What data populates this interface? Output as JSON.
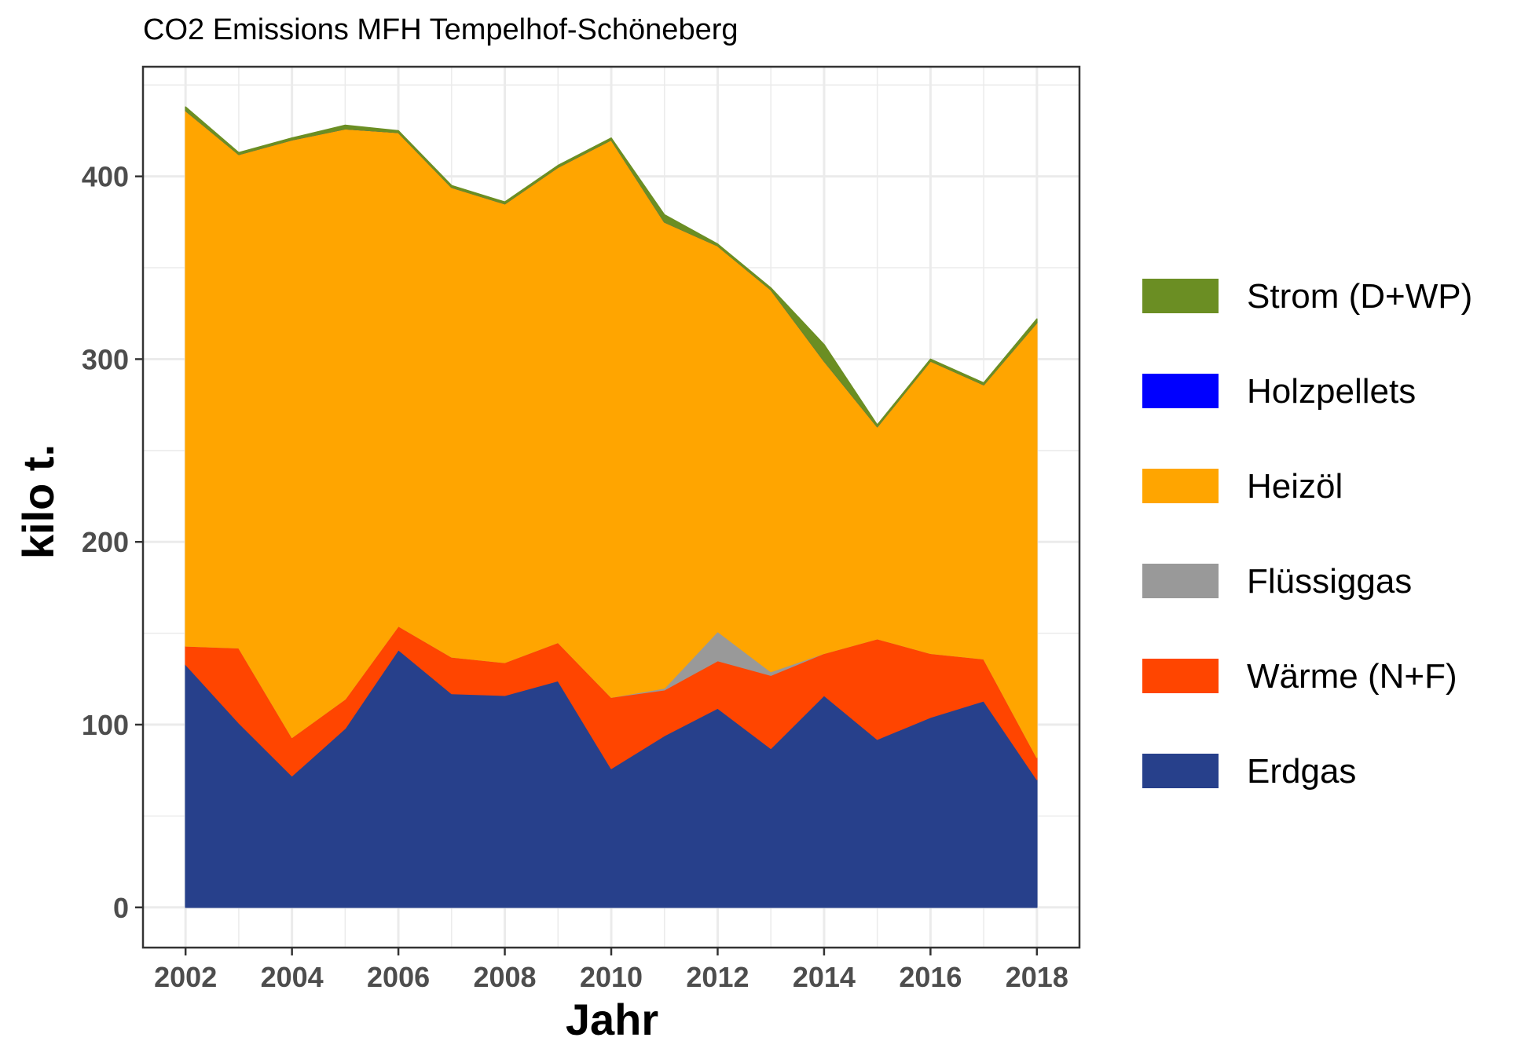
{
  "chart_data": {
    "type": "area",
    "title": "CO2 Emissions MFH Tempelhof-Schöneberg",
    "xlabel": "Jahr",
    "ylabel": "kilo t.",
    "x": [
      2002,
      2003,
      2004,
      2005,
      2006,
      2007,
      2008,
      2009,
      2010,
      2011,
      2012,
      2013,
      2014,
      2015,
      2016,
      2017,
      2018
    ],
    "xlim": [
      2001.2,
      2018.8
    ],
    "ylim": [
      -22,
      460
    ],
    "x_ticks": [
      "2002",
      "2004",
      "2006",
      "2008",
      "2010",
      "2012",
      "2014",
      "2016",
      "2018"
    ],
    "y_ticks": [
      "0",
      "100",
      "200",
      "300",
      "400"
    ],
    "grid": true,
    "legend_position": "right",
    "stacked": true,
    "series": [
      {
        "name": "Erdgas",
        "color": "#27408B",
        "values": [
          133,
          101,
          72,
          98,
          141,
          117,
          116,
          124,
          76,
          94,
          109,
          87,
          116,
          92,
          104,
          113,
          70
        ]
      },
      {
        "name": "Wärme (N+F)",
        "color": "#FF4500",
        "values": [
          10,
          41,
          21,
          16,
          13,
          20,
          18,
          21,
          39,
          25,
          26,
          40,
          23,
          55,
          35,
          23,
          12
        ]
      },
      {
        "name": "Flüssiggas",
        "color": "#999999",
        "values": [
          0,
          0,
          0,
          0,
          0,
          0,
          0,
          0,
          0,
          1,
          16,
          2,
          0,
          0,
          0,
          0,
          0
        ]
      },
      {
        "name": "Heizöl",
        "color": "#FFA500",
        "values": [
          293,
          270,
          327,
          312,
          270,
          257,
          251,
          260,
          305,
          255,
          211,
          209,
          160,
          116,
          160,
          150,
          238
        ]
      },
      {
        "name": "Holzpellets",
        "color": "#0000FF",
        "values": [
          0,
          0,
          0,
          0,
          0,
          0,
          0,
          0,
          0,
          0,
          0,
          0,
          0,
          0,
          0,
          0,
          0
        ]
      },
      {
        "name": "Strom (D+WP)",
        "color": "#6B8E23",
        "values": [
          2,
          1,
          1,
          2,
          1,
          1,
          1,
          1,
          1,
          4,
          1,
          1,
          9,
          1,
          1,
          1,
          2
        ]
      }
    ],
    "legend_order": [
      "Strom (D+WP)",
      "Holzpellets",
      "Heizöl",
      "Flüssiggas",
      "Wärme (N+F)",
      "Erdgas"
    ]
  }
}
